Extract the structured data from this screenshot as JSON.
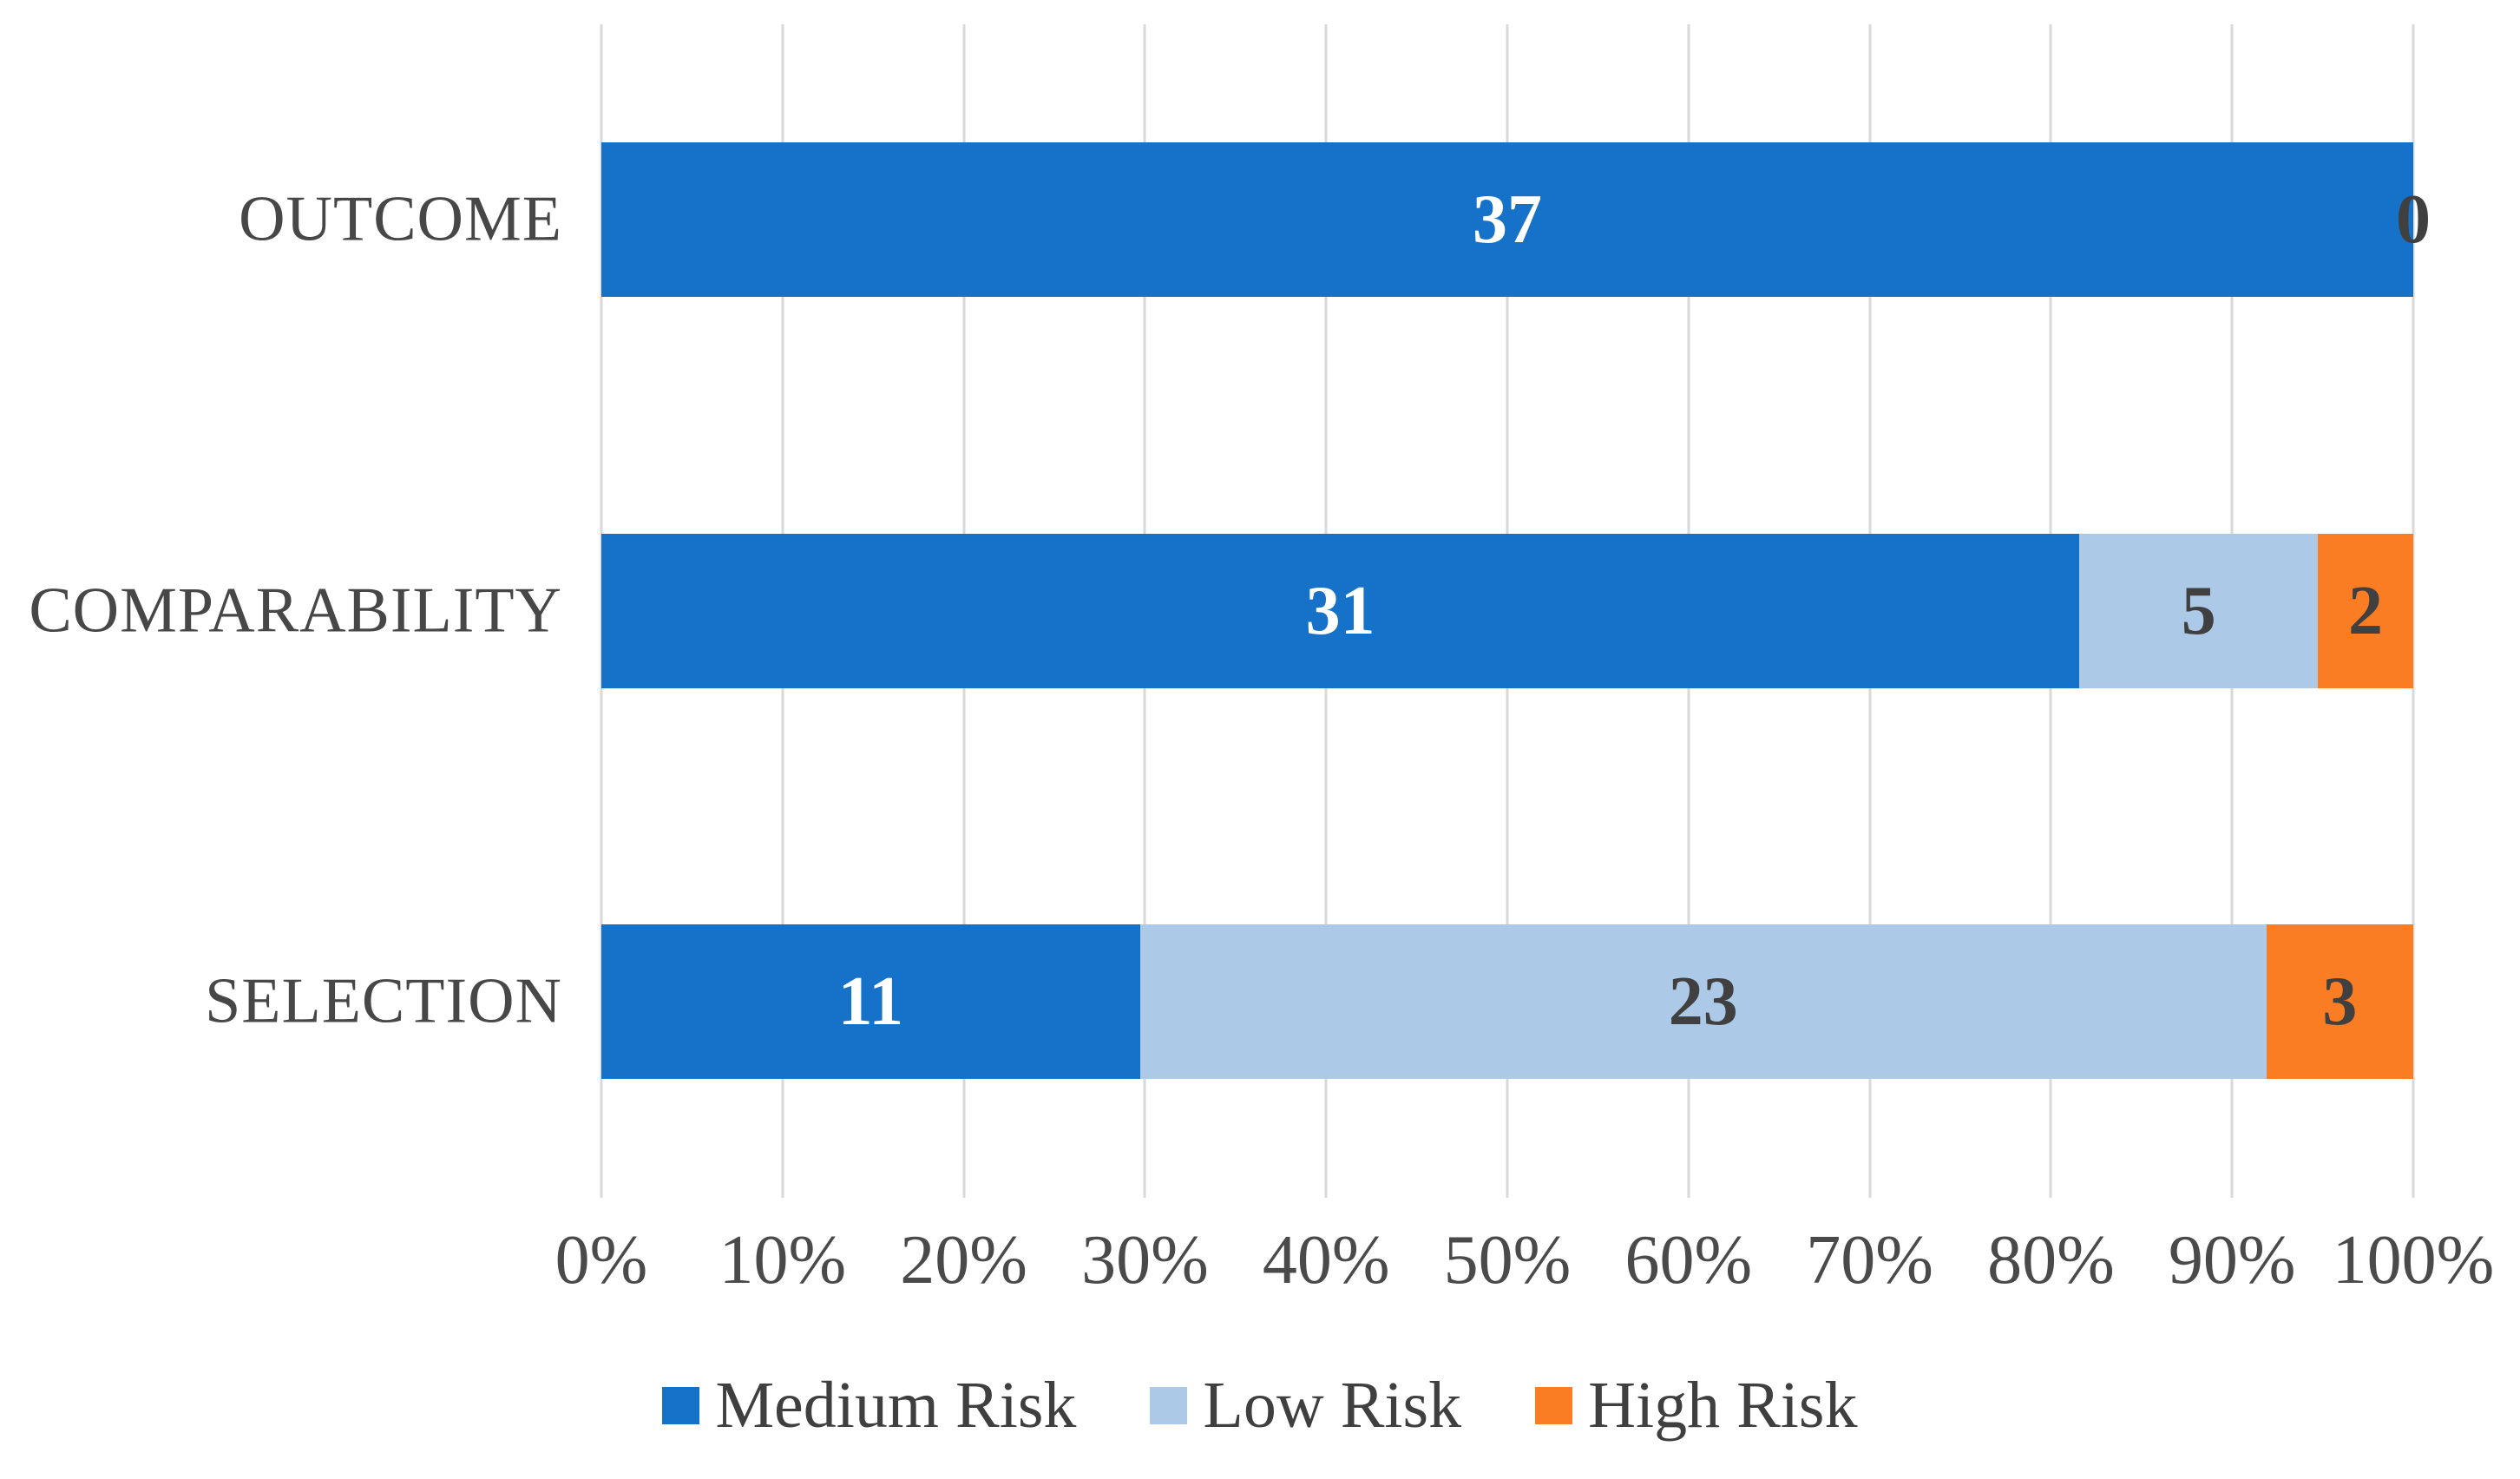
{
  "chart_data": {
    "type": "bar",
    "subtype": "stacked-100-horizontal",
    "categories": [
      "OUTCOME",
      "COMPARABILITY",
      "SELECTION"
    ],
    "series": [
      {
        "name": "Medium Risk",
        "color": "#1572C8",
        "label_color": "#FFFFFF",
        "values": [
          37,
          31,
          11
        ]
      },
      {
        "name": "Low Risk",
        "color": "#ADC9E8",
        "label_color": "#404040",
        "values": [
          0,
          5,
          23
        ]
      },
      {
        "name": "High Risk",
        "color": "#FB7D23",
        "label_color": "#404040",
        "values": [
          0,
          2,
          3
        ]
      }
    ],
    "zero_end_labels": [
      {
        "category_index": 0,
        "text": "0"
      }
    ],
    "x_ticks": [
      "0%",
      "10%",
      "20%",
      "30%",
      "40%",
      "50%",
      "60%",
      "70%",
      "80%",
      "90%",
      "100%"
    ],
    "xlim_percent": [
      0,
      100
    ],
    "grid": "vertical-only",
    "legend_position": "bottom",
    "colors": {
      "background": "#FFFFFF",
      "gridline": "#D9D9D9",
      "axis_text": "#4A4A4A",
      "category_text": "#474747",
      "legend_text": "#3F3F3F",
      "zero_label_text": "#404040"
    }
  }
}
